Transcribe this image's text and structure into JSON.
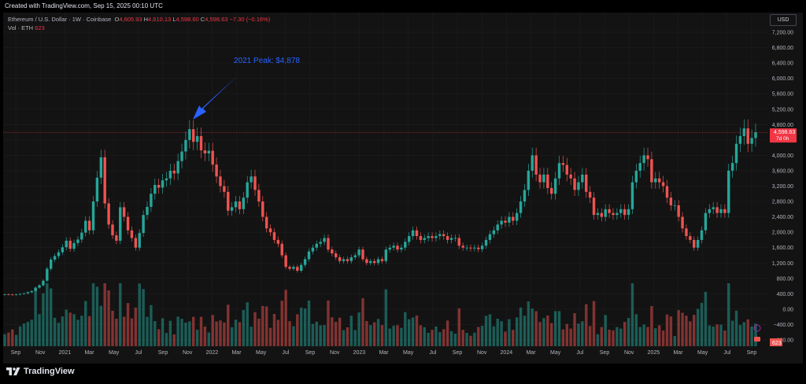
{
  "header": {
    "created_text": "Created with TradingView.com, Sep 15, 2025 00:10 UTC"
  },
  "legend": {
    "symbol": "Ethereum / U.S. Dollar · 1W · Coinbase",
    "open_label": "O",
    "open": "4,605.93",
    "high_label": "H",
    "high": "4,610.13",
    "low_label": "L",
    "low": "4,598.60",
    "close_label": "C",
    "close": "4,598.63",
    "change": "−7.30 (−0.16%)",
    "volume_label": "Vol · ETH",
    "volume": "623"
  },
  "currency_button": "USD",
  "brand": "TradingView",
  "colors": {
    "up": "#26a69a",
    "down": "#ef5350",
    "annotation": "#2962ff",
    "price_line": "#f23645"
  },
  "chart_data": {
    "type": "candlestick",
    "interval": "1W",
    "y_axis": {
      "ticks": [
        "7,200.00",
        "6,800.00",
        "6,400.00",
        "6,000.00",
        "5,600.00",
        "5,200.00",
        "4,800.00",
        "4,400.00",
        "4,000.00",
        "3,600.00",
        "3,200.00",
        "2,800.00",
        "2,400.00",
        "2,000.00",
        "1,600.00",
        "1,200.00",
        "800.00",
        "400.00",
        "0.00",
        "−400.00",
        "−800.00"
      ],
      "range": [
        -800,
        7200
      ]
    },
    "x_axis": {
      "ticks": [
        "Sep",
        "Nov",
        "2021",
        "Mar",
        "May",
        "Jul",
        "Sep",
        "Nov",
        "2022",
        "Mar",
        "May",
        "Jul",
        "Sep",
        "Nov",
        "2023",
        "Mar",
        "May",
        "Jul",
        "Sep",
        "Nov",
        "2024",
        "Mar",
        "May",
        "Jul",
        "Sep",
        "Nov",
        "2025",
        "Mar",
        "May",
        "Jul",
        "Sep"
      ]
    },
    "current_price": {
      "label": "4,598.63",
      "countdown": "7d 0h",
      "value": 4598.63
    },
    "volume_badge": "623",
    "annotation": {
      "text": "2021 Peak: $4,878",
      "value": 4878
    },
    "close_series": [
      385,
      380,
      375,
      380,
      395,
      410,
      440,
      470,
      560,
      620,
      740,
      1050,
      1290,
      1380,
      1480,
      1610,
      1780,
      1570,
      1720,
      1810,
      1990,
      2300,
      2050,
      2800,
      3420,
      3950,
      2750,
      2200,
      1920,
      1780,
      2650,
      2400,
      2050,
      1850,
      1600,
      1980,
      2450,
      2660,
      3000,
      3230,
      3160,
      3350,
      3400,
      3600,
      3530,
      3850,
      4100,
      4400,
      4680,
      4350,
      4500,
      4130,
      4050,
      4120,
      3760,
      3450,
      3200,
      3050,
      2560,
      2650,
      2800,
      2600,
      2900,
      3300,
      3450,
      3100,
      2800,
      2400,
      2100,
      2000,
      1800,
      1700,
      1400,
      1100,
      1050,
      1100,
      1000,
      1150,
      1300,
      1500,
      1600,
      1700,
      1750,
      1850,
      1550,
      1450,
      1350,
      1250,
      1300,
      1250,
      1350,
      1400,
      1550,
      1300,
      1200,
      1250,
      1200,
      1300,
      1250,
      1550,
      1600,
      1650,
      1550,
      1600,
      1750,
      1900,
      2050,
      1900,
      1800,
      1850,
      1900,
      1850,
      1900,
      1950,
      1900,
      1800,
      1850,
      1850,
      1650,
      1600,
      1600,
      1580,
      1600,
      1560,
      1650,
      1800,
      1950,
      2050,
      2200,
      2300,
      2250,
      2400,
      2300,
      2500,
      2800,
      3100,
      3600,
      4000,
      3500,
      3300,
      3500,
      3150,
      3000,
      3400,
      3800,
      3750,
      3500,
      3400,
      3100,
      3300,
      3500,
      3050,
      2900,
      2450,
      2500,
      2400,
      2600,
      2500,
      2450,
      2500,
      2600,
      2450,
      2600,
      3300,
      3600,
      3800,
      4000,
      3900,
      3300,
      3400,
      3300,
      3200,
      2900,
      2700,
      2700,
      2400,
      2100,
      1900,
      1800,
      1600,
      1800,
      2050,
      2500,
      2600,
      2650,
      2500,
      2600,
      2500,
      3600,
      3800,
      4300,
      4500,
      4700,
      4300,
      4450,
      4600
    ]
  }
}
